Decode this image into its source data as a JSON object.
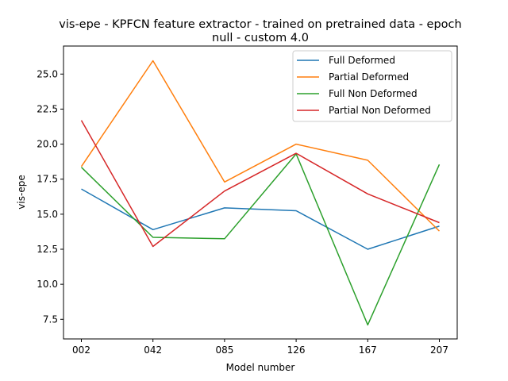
{
  "chart_data": {
    "type": "line",
    "title_lines": [
      "vis-epe - KPFCN feature extractor -  trained on pretrained data -  epoch",
      "null - custom 4.0"
    ],
    "xlabel": "Model number",
    "ylabel": "vis-epe",
    "categories": [
      "002",
      "042",
      "085",
      "126",
      "167",
      "207"
    ],
    "yticks": [
      7.5,
      10.0,
      12.5,
      15.0,
      17.5,
      20.0,
      22.5,
      25.0
    ],
    "ytick_labels": [
      "7.5",
      "10.0",
      "12.5",
      "15.0",
      "17.5",
      "20.0",
      "22.5",
      "25.0"
    ],
    "ylim": [
      6.1,
      27.0
    ],
    "grid": false,
    "legend_position": "top-right",
    "series": [
      {
        "name": "Full Deformed",
        "color": "#1f77b4",
        "values": [
          16.8,
          13.9,
          15.45,
          15.25,
          12.5,
          14.15
        ]
      },
      {
        "name": "Partial Deformed",
        "color": "#ff7f0e",
        "values": [
          18.4,
          25.95,
          17.3,
          20.0,
          18.85,
          13.8
        ]
      },
      {
        "name": "Full Non Deformed",
        "color": "#2ca02c",
        "values": [
          18.35,
          13.35,
          13.25,
          19.3,
          7.1,
          18.55
        ]
      },
      {
        "name": "Partial Non Deformed",
        "color": "#d62728",
        "values": [
          21.7,
          12.7,
          16.65,
          19.35,
          16.45,
          14.4
        ]
      }
    ]
  }
}
